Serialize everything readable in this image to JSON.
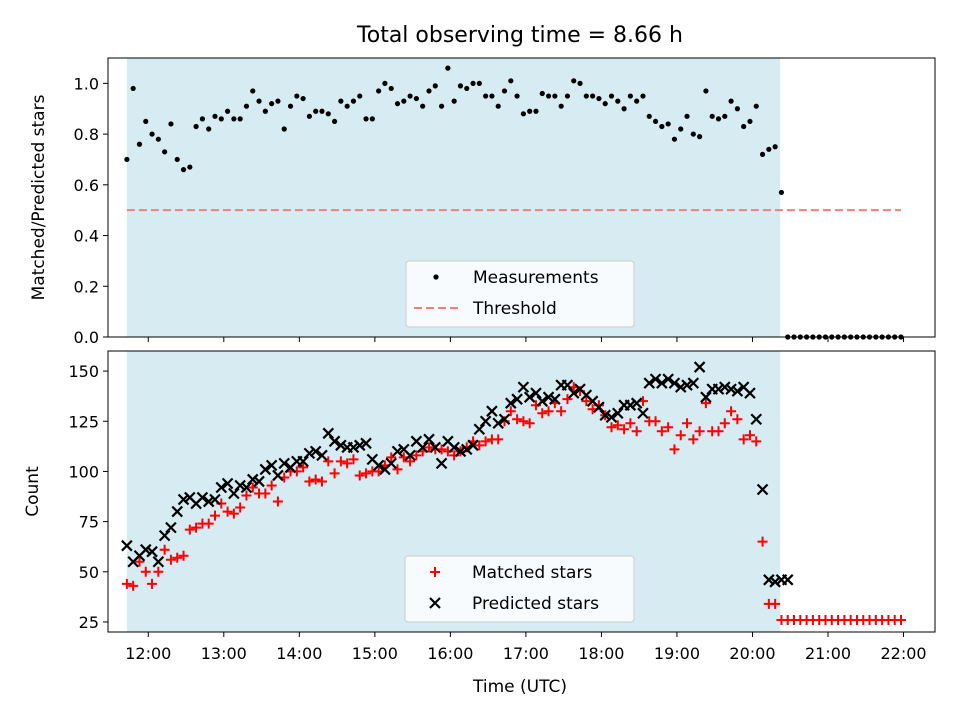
{
  "title": "Total observing time = 8.66 h",
  "xlabel": "Time (UTC)",
  "colors": {
    "shade": "#add8e6",
    "threshold": "#f08080",
    "measurements": "#000000",
    "matched": "#ff0000",
    "predicted": "#000000"
  },
  "chart_data": [
    {
      "type": "scatter",
      "ylabel": "Matched/Predicted stars",
      "xlim": [
        "11:28",
        "22:25"
      ],
      "ylim": [
        0,
        1.1
      ],
      "grid": false,
      "legend_position": "lower-center",
      "shaded_region": {
        "x_start": "11:43",
        "x_end": "20:22"
      },
      "threshold": {
        "name": "Threshold",
        "y": 0.5,
        "x_start": "11:43",
        "x_end": "21:58"
      },
      "series": [
        {
          "name": "Measurements",
          "x": [
            "11:43",
            "11:48",
            "11:53",
            "11:58",
            "12:03",
            "12:08",
            "12:13",
            "12:18",
            "12:23",
            "12:28",
            "12:33",
            "12:38",
            "12:43",
            "12:48",
            "12:53",
            "12:58",
            "13:03",
            "13:08",
            "13:13",
            "13:18",
            "13:23",
            "13:28",
            "13:33",
            "13:38",
            "13:43",
            "13:48",
            "13:53",
            "13:58",
            "14:03",
            "14:08",
            "14:13",
            "14:18",
            "14:23",
            "14:28",
            "14:33",
            "14:38",
            "14:43",
            "14:48",
            "14:53",
            "14:58",
            "15:03",
            "15:08",
            "15:13",
            "15:18",
            "15:23",
            "15:28",
            "15:33",
            "15:38",
            "15:43",
            "15:48",
            "15:53",
            "15:58",
            "16:03",
            "16:08",
            "16:13",
            "16:18",
            "16:23",
            "16:28",
            "16:33",
            "16:38",
            "16:43",
            "16:48",
            "16:53",
            "16:58",
            "17:03",
            "17:08",
            "17:13",
            "17:18",
            "17:23",
            "17:28",
            "17:33",
            "17:38",
            "17:43",
            "17:48",
            "17:53",
            "17:58",
            "18:03",
            "18:08",
            "18:13",
            "18:18",
            "18:23",
            "18:28",
            "18:33",
            "18:38",
            "18:43",
            "18:48",
            "18:53",
            "18:58",
            "19:03",
            "19:08",
            "19:13",
            "19:18",
            "19:23",
            "19:28",
            "19:33",
            "19:38",
            "19:43",
            "19:48",
            "19:53",
            "19:58",
            "20:03",
            "20:08",
            "20:13",
            "20:18",
            "20:23",
            "20:28",
            "20:33",
            "20:38",
            "20:43",
            "20:48",
            "20:53",
            "20:58",
            "21:03",
            "21:08",
            "21:13",
            "21:18",
            "21:23",
            "21:28",
            "21:33",
            "21:38",
            "21:43",
            "21:48",
            "21:53",
            "21:58"
          ],
          "y": [
            0.7,
            0.98,
            0.76,
            0.85,
            0.8,
            0.78,
            0.73,
            0.84,
            0.7,
            0.66,
            0.67,
            0.83,
            0.86,
            0.82,
            0.87,
            0.86,
            0.89,
            0.86,
            0.86,
            0.91,
            0.97,
            0.93,
            0.89,
            0.92,
            0.93,
            0.82,
            0.91,
            0.95,
            0.94,
            0.87,
            0.89,
            0.89,
            0.88,
            0.85,
            0.93,
            0.91,
            0.93,
            0.95,
            0.86,
            0.86,
            0.97,
            1.0,
            0.98,
            0.92,
            0.93,
            0.95,
            0.94,
            0.91,
            0.97,
            0.99,
            0.91,
            1.06,
            0.93,
            0.99,
            0.98,
            1.0,
            1.0,
            0.95,
            0.95,
            0.91,
            0.97,
            1.01,
            0.95,
            0.88,
            0.89,
            0.89,
            0.96,
            0.95,
            0.95,
            0.91,
            0.95,
            1.01,
            1.0,
            0.95,
            0.95,
            0.94,
            0.92,
            0.95,
            0.93,
            0.9,
            0.95,
            0.93,
            0.95,
            0.87,
            0.85,
            0.83,
            0.84,
            0.78,
            0.82,
            0.87,
            0.8,
            0.79,
            0.97,
            0.87,
            0.86,
            0.87,
            0.93,
            0.9,
            0.83,
            0.85,
            0.91,
            0.72,
            0.74,
            0.75,
            0.57,
            0,
            0,
            0,
            0,
            0,
            0,
            0,
            0,
            0,
            0,
            0,
            0,
            0,
            0,
            0,
            0,
            0,
            0,
            0
          ]
        }
      ]
    },
    {
      "type": "scatter",
      "ylabel": "Count",
      "xlim": [
        "11:28",
        "22:25"
      ],
      "ylim": [
        20,
        160
      ],
      "grid": false,
      "legend_position": "lower-center",
      "shaded_region": {
        "x_start": "11:43",
        "x_end": "20:22"
      },
      "x_ticks": [
        "12:00",
        "13:00",
        "14:00",
        "15:00",
        "16:00",
        "17:00",
        "18:00",
        "19:00",
        "20:00",
        "21:00",
        "22:00"
      ],
      "series": [
        {
          "name": "Matched stars",
          "marker": "plus",
          "x": [
            "11:43",
            "11:48",
            "11:53",
            "11:58",
            "12:03",
            "12:08",
            "12:13",
            "12:18",
            "12:23",
            "12:28",
            "12:33",
            "12:38",
            "12:43",
            "12:48",
            "12:53",
            "12:58",
            "13:03",
            "13:08",
            "13:13",
            "13:18",
            "13:23",
            "13:28",
            "13:33",
            "13:38",
            "13:43",
            "13:48",
            "13:53",
            "13:58",
            "14:03",
            "14:08",
            "14:13",
            "14:18",
            "14:23",
            "14:28",
            "14:33",
            "14:38",
            "14:43",
            "14:48",
            "14:53",
            "14:58",
            "15:03",
            "15:08",
            "15:13",
            "15:18",
            "15:23",
            "15:28",
            "15:33",
            "15:38",
            "15:43",
            "15:48",
            "15:53",
            "15:58",
            "16:03",
            "16:08",
            "16:13",
            "16:18",
            "16:23",
            "16:28",
            "16:33",
            "16:38",
            "16:43",
            "16:48",
            "16:53",
            "16:58",
            "17:03",
            "17:08",
            "17:13",
            "17:18",
            "17:23",
            "17:28",
            "17:33",
            "17:38",
            "17:43",
            "17:48",
            "17:53",
            "17:58",
            "18:03",
            "18:08",
            "18:13",
            "18:18",
            "18:23",
            "18:28",
            "18:33",
            "18:38",
            "18:43",
            "18:48",
            "18:53",
            "18:58",
            "19:03",
            "19:08",
            "19:13",
            "19:18",
            "19:23",
            "19:28",
            "19:33",
            "19:38",
            "19:43",
            "19:48",
            "19:53",
            "19:58",
            "20:03",
            "20:08",
            "20:13",
            "20:18",
            "20:23",
            "20:28",
            "20:33",
            "20:38",
            "20:43",
            "20:48",
            "20:53",
            "20:58",
            "21:03",
            "21:08",
            "21:13",
            "21:18",
            "21:23",
            "21:28",
            "21:33",
            "21:38",
            "21:43",
            "21:48",
            "21:53",
            "21:58"
          ],
          "y": [
            44,
            43,
            55,
            50,
            44,
            50,
            61,
            56,
            57,
            58,
            71,
            72,
            74,
            74,
            78,
            84,
            80,
            79,
            82,
            88,
            92,
            89,
            89,
            93,
            85,
            97,
            100,
            100,
            102,
            95,
            96,
            95,
            105,
            99,
            105,
            104,
            106,
            98,
            99,
            100,
            100,
            103,
            107,
            101,
            107,
            105,
            108,
            110,
            112,
            111,
            111,
            110,
            108,
            110,
            112,
            115,
            113,
            115,
            116,
            116,
            125,
            130,
            126,
            125,
            124,
            133,
            129,
            130,
            134,
            130,
            136,
            142,
            140,
            135,
            131,
            133,
            128,
            122,
            123,
            121,
            124,
            120,
            135,
            125,
            125,
            120,
            122,
            111,
            118,
            124,
            116,
            120,
            134,
            120,
            120,
            124,
            130,
            126,
            116,
            118,
            115,
            65,
            34,
            34,
            26,
            26,
            26,
            26,
            26,
            26,
            26,
            26,
            26,
            26,
            26,
            26,
            26,
            26,
            26,
            26,
            26,
            26,
            26,
            26
          ]
        },
        {
          "name": "Predicted stars",
          "marker": "x",
          "x": [
            "11:43",
            "11:48",
            "11:53",
            "11:58",
            "12:03",
            "12:08",
            "12:13",
            "12:18",
            "12:23",
            "12:28",
            "12:33",
            "12:38",
            "12:43",
            "12:48",
            "12:53",
            "12:58",
            "13:03",
            "13:08",
            "13:13",
            "13:18",
            "13:23",
            "13:28",
            "13:33",
            "13:38",
            "13:43",
            "13:48",
            "13:53",
            "13:58",
            "14:03",
            "14:08",
            "14:13",
            "14:18",
            "14:23",
            "14:28",
            "14:33",
            "14:38",
            "14:43",
            "14:48",
            "14:53",
            "14:58",
            "15:03",
            "15:08",
            "15:13",
            "15:18",
            "15:23",
            "15:28",
            "15:33",
            "15:38",
            "15:43",
            "15:48",
            "15:53",
            "15:58",
            "16:03",
            "16:08",
            "16:13",
            "16:18",
            "16:23",
            "16:28",
            "16:33",
            "16:38",
            "16:43",
            "16:48",
            "16:53",
            "16:58",
            "17:03",
            "17:08",
            "17:13",
            "17:18",
            "17:23",
            "17:28",
            "17:33",
            "17:38",
            "17:43",
            "17:48",
            "17:53",
            "17:58",
            "18:03",
            "18:08",
            "18:13",
            "18:18",
            "18:23",
            "18:28",
            "18:33",
            "18:38",
            "18:43",
            "18:48",
            "18:53",
            "18:58",
            "19:03",
            "19:08",
            "19:13",
            "19:18",
            "19:23",
            "19:28",
            "19:33",
            "19:38",
            "19:43",
            "19:48",
            "19:53",
            "19:58",
            "20:03",
            "20:08",
            "20:13",
            "20:18",
            "20:23",
            "20:28"
          ],
          "y": [
            63,
            55,
            58,
            61,
            60,
            55,
            68,
            72,
            80,
            86,
            87,
            84,
            87,
            85,
            86,
            92,
            94,
            89,
            93,
            92,
            96,
            95,
            101,
            103,
            98,
            104,
            102,
            105,
            105,
            109,
            110,
            108,
            119,
            115,
            113,
            112,
            112,
            113,
            114,
            106,
            103,
            101,
            104,
            110,
            111,
            108,
            115,
            112,
            116,
            112,
            104,
            115,
            112,
            110,
            111,
            113,
            121,
            125,
            130,
            124,
            126,
            134,
            136,
            142,
            137,
            139,
            135,
            137,
            136,
            143,
            143,
            139,
            141,
            138,
            135,
            132,
            128,
            127,
            129,
            133,
            133,
            134,
            129,
            144,
            146,
            144,
            146,
            144,
            142,
            143,
            144,
            152,
            137,
            141,
            141,
            142,
            141,
            140,
            142,
            139,
            126,
            91,
            46,
            45,
            46,
            46
          ]
        }
      ]
    }
  ]
}
